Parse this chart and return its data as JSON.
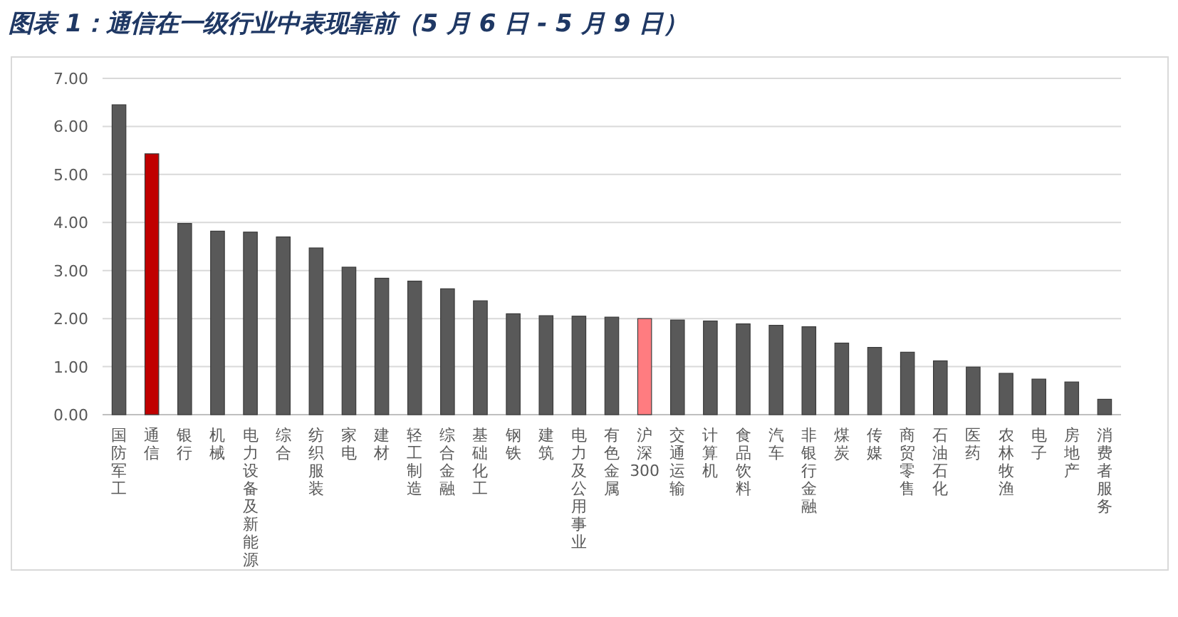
{
  "chart_data": {
    "type": "bar",
    "title": "图表 1：通信在一级行业中表现靠前（5 月 6 日 - 5 月 9 日）",
    "categories": [
      "国防军工",
      "通信",
      "银行",
      "机械",
      "电力设备及新能源",
      "综合",
      "纺织服装",
      "家电",
      "建材",
      "轻工制造",
      "综合金融",
      "基础化工",
      "钢铁",
      "建筑",
      "电力及公用事业",
      "有色金属",
      "沪深300",
      "交通运输",
      "计算机",
      "食品饮料",
      "汽车",
      "非银行金融",
      "煤炭",
      "传媒",
      "商贸零售",
      "石油石化",
      "医药",
      "农林牧渔",
      "电子",
      "房地产",
      "消费者服务"
    ],
    "values": [
      6.45,
      5.43,
      3.98,
      3.82,
      3.8,
      3.7,
      3.47,
      3.07,
      2.84,
      2.78,
      2.62,
      2.37,
      2.1,
      2.06,
      2.05,
      2.03,
      2.0,
      1.97,
      1.95,
      1.89,
      1.86,
      1.83,
      1.49,
      1.4,
      1.3,
      1.12,
      0.99,
      0.86,
      0.74,
      0.68,
      0.32
    ],
    "colors": [
      "#595959",
      "#c00000",
      "#595959",
      "#595959",
      "#595959",
      "#595959",
      "#595959",
      "#595959",
      "#595959",
      "#595959",
      "#595959",
      "#595959",
      "#595959",
      "#595959",
      "#595959",
      "#595959",
      "#ff7c80",
      "#595959",
      "#595959",
      "#595959",
      "#595959",
      "#595959",
      "#595959",
      "#595959",
      "#595959",
      "#595959",
      "#595959",
      "#595959",
      "#595959",
      "#595959",
      "#595959"
    ],
    "ylim": [
      0,
      7
    ],
    "yticks": [
      {
        "value": 0,
        "label": "0.00"
      },
      {
        "value": 1,
        "label": "1.00"
      },
      {
        "value": 2,
        "label": "2.00"
      },
      {
        "value": 3,
        "label": "3.00"
      },
      {
        "value": 4,
        "label": "4.00"
      },
      {
        "value": 5,
        "label": "5.00"
      },
      {
        "value": 6,
        "label": "6.00"
      },
      {
        "value": 7,
        "label": "7.00"
      }
    ],
    "grid": "y"
  }
}
